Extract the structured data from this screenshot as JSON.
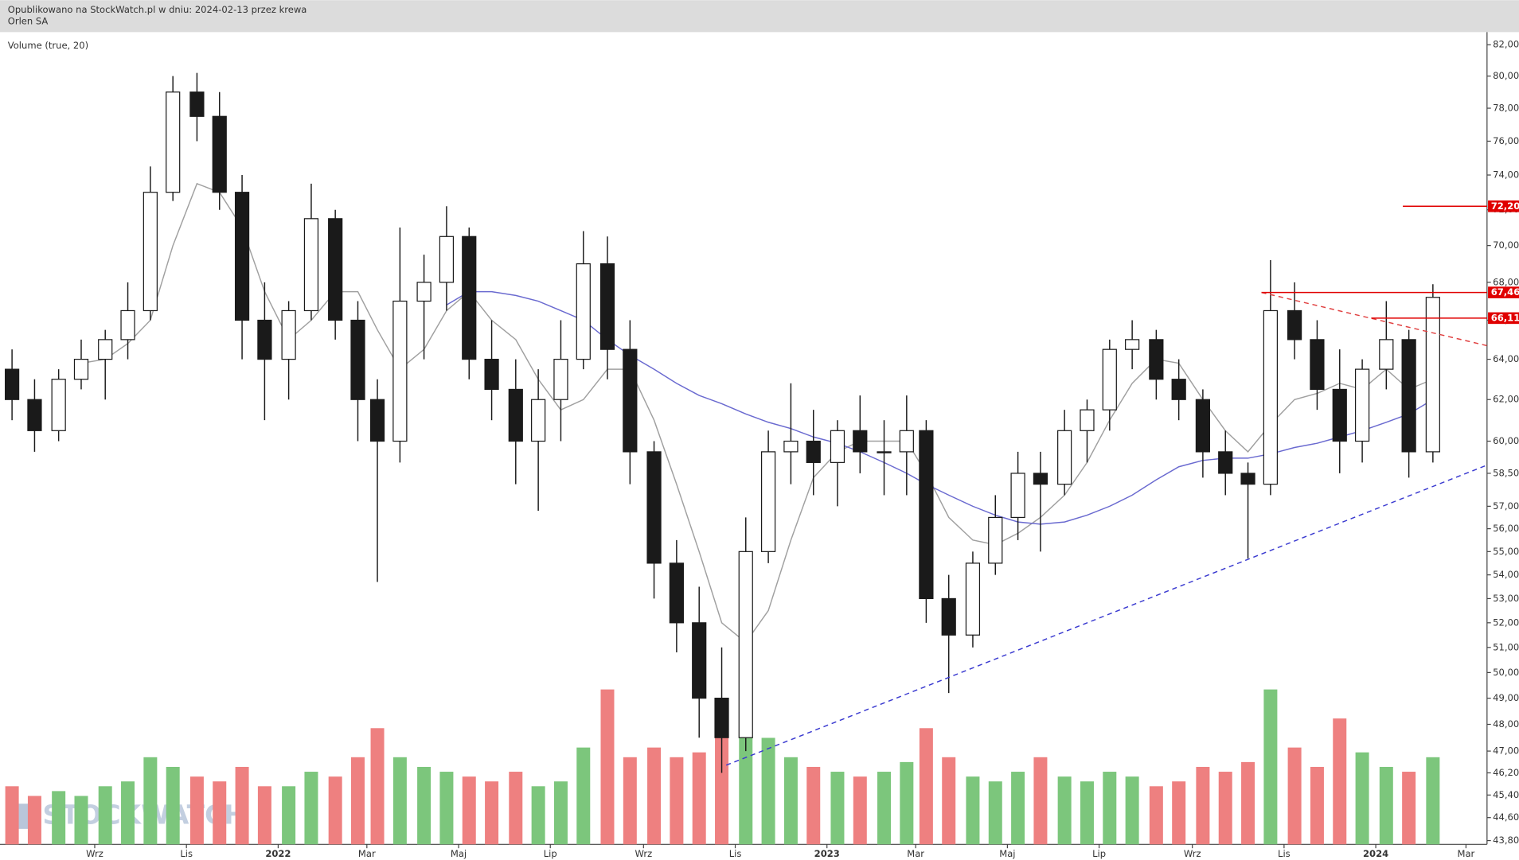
{
  "chart_data": {
    "type": "candlestick",
    "subtitle": "Opublikowano na StockWatch.pl w dniu: 2024-02-13 przez krewa",
    "title": "Orlen SA",
    "indicator_label": "Volume (true, 20)",
    "watermark": "STOCKWATCH",
    "log_scale": true,
    "x": [
      "2021-07-08",
      "2021-07-23",
      "2021-08-08",
      "2021-08-23",
      "2021-09-08",
      "2021-09-23",
      "2021-10-08",
      "2021-10-23",
      "2021-11-08",
      "2021-11-23",
      "2021-12-08",
      "2021-12-23",
      "2022-01-08",
      "2022-01-23",
      "2022-02-08",
      "2022-02-23",
      "2022-03-08",
      "2022-03-23",
      "2022-04-08",
      "2022-04-23",
      "2022-05-08",
      "2022-05-23",
      "2022-06-08",
      "2022-06-23",
      "2022-07-08",
      "2022-07-23",
      "2022-08-08",
      "2022-08-23",
      "2022-09-08",
      "2022-09-23",
      "2022-10-08",
      "2022-10-23",
      "2022-11-08",
      "2022-11-23",
      "2022-12-08",
      "2022-12-23",
      "2023-01-08",
      "2023-01-23",
      "2023-02-08",
      "2023-02-23",
      "2023-03-08",
      "2023-03-23",
      "2023-04-08",
      "2023-04-23",
      "2023-05-08",
      "2023-05-23",
      "2023-06-08",
      "2023-06-23",
      "2023-07-08",
      "2023-07-23",
      "2023-08-08",
      "2023-08-23",
      "2023-09-08",
      "2023-09-23",
      "2023-10-08",
      "2023-10-23",
      "2023-11-08",
      "2023-11-23",
      "2023-12-08",
      "2023-12-23",
      "2024-01-08",
      "2024-01-23",
      "2024-02-08"
    ],
    "open": [
      63.5,
      62,
      60.5,
      63,
      64,
      65,
      66.5,
      73,
      79,
      77.5,
      73,
      66,
      64,
      66.5,
      71.5,
      66,
      62,
      60,
      67,
      68,
      70.5,
      64,
      62.5,
      60,
      62,
      64,
      69,
      64.5,
      59.5,
      54.5,
      52,
      49,
      47.5,
      55,
      59.5,
      60,
      59,
      60.5,
      59.5,
      59.5,
      60.5,
      53,
      51.5,
      54.5,
      56.5,
      58.5,
      58,
      60.5,
      61.5,
      64.5,
      65,
      63,
      62,
      59.5,
      58.5,
      58,
      66.5,
      65,
      62.5,
      60,
      63.5,
      65,
      59.5
    ],
    "high": [
      64.5,
      63,
      63.5,
      65,
      65.5,
      68,
      74.5,
      80,
      80.2,
      79,
      74,
      68,
      67,
      73.5,
      72,
      67,
      63,
      71,
      69.5,
      72.2,
      71,
      66,
      64,
      63.5,
      66,
      70.8,
      70.5,
      66,
      60,
      55.5,
      53.5,
      51,
      56.5,
      60.5,
      62.8,
      61.5,
      61,
      62.2,
      61,
      62.2,
      61,
      54,
      55,
      57.5,
      59.5,
      59.5,
      61.5,
      62,
      65,
      66,
      65.5,
      64,
      62.5,
      60.5,
      59,
      69.2,
      68,
      66,
      64.5,
      64,
      67,
      65.5,
      67.9
    ],
    "low": [
      61,
      59.5,
      60,
      62.5,
      62,
      64,
      66,
      72.5,
      76,
      72,
      64,
      61,
      62,
      66,
      65,
      60,
      53.7,
      59,
      64,
      66.5,
      63,
      61,
      58,
      56.8,
      60,
      63.5,
      63,
      58,
      53,
      50.8,
      47.5,
      46.2,
      47,
      54.5,
      58,
      57.5,
      57,
      58.5,
      57.5,
      57.5,
      52,
      49.2,
      51,
      54,
      55.5,
      55,
      57.5,
      59,
      60.5,
      63.5,
      62,
      61,
      58.3,
      57.5,
      54.7,
      57.5,
      64,
      61.5,
      58.5,
      59,
      62.5,
      58.3,
      59
    ],
    "close": [
      62,
      60.5,
      63,
      64,
      65,
      66.5,
      73,
      79,
      77.5,
      73,
      66,
      64,
      66.5,
      71.5,
      66,
      62,
      60,
      67,
      68,
      70.5,
      64,
      62.5,
      60,
      62,
      64,
      69,
      64.5,
      59.5,
      54.5,
      52,
      49,
      47.5,
      55,
      59.5,
      60,
      59,
      60.5,
      59.5,
      59.5,
      60.5,
      53,
      51.5,
      54.5,
      56.5,
      58.5,
      58,
      60.5,
      61.5,
      64.5,
      65,
      63,
      62,
      59.5,
      58.5,
      58,
      66.5,
      65,
      62.5,
      60,
      63.5,
      65,
      59.5,
      67.2
    ],
    "volume": [
      1.2,
      1.0,
      1.1,
      1.0,
      1.2,
      1.3,
      1.8,
      1.6,
      1.4,
      1.3,
      1.6,
      1.2,
      1.2,
      1.5,
      1.4,
      1.8,
      2.4,
      1.8,
      1.6,
      1.5,
      1.4,
      1.3,
      1.5,
      1.2,
      1.3,
      2.0,
      3.2,
      1.8,
      2.0,
      1.8,
      1.9,
      2.3,
      3.0,
      2.2,
      1.8,
      1.6,
      1.5,
      1.4,
      1.5,
      1.7,
      2.4,
      1.8,
      1.4,
      1.3,
      1.5,
      1.8,
      1.4,
      1.3,
      1.5,
      1.4,
      1.2,
      1.3,
      1.6,
      1.5,
      1.7,
      3.2,
      2.0,
      1.6,
      2.6,
      1.9,
      1.6,
      1.5,
      1.8
    ],
    "candle_colors": {
      "up": "#ffffff",
      "down": "#1a1a1a",
      "wick": "#1a1a1a"
    },
    "volume_colors": {
      "up": "#7cc67c",
      "down": "#ee8080"
    },
    "moving_averages": [
      {
        "color": "#a0a0a0",
        "values": [
          null,
          null,
          null,
          63.8,
          64,
          64.8,
          66,
          70,
          73.5,
          73,
          71,
          67.5,
          65,
          66,
          67.5,
          67.5,
          65.5,
          63.5,
          64.5,
          66.5,
          67.5,
          66,
          65,
          63,
          61.5,
          62,
          63.5,
          63.5,
          61,
          58,
          55,
          52,
          51.2,
          52.5,
          55.5,
          58.3,
          59.5,
          60,
          60,
          60,
          58.5,
          56.5,
          55.5,
          55.3,
          55.8,
          56.5,
          57.5,
          59,
          61,
          62.8,
          64,
          63.8,
          62,
          60.5,
          59.5,
          60.8,
          62,
          62.3,
          62.8,
          62.5,
          63.5,
          62.5,
          63
        ]
      },
      {
        "color": "#6a6ad0",
        "values": [
          null,
          null,
          null,
          null,
          null,
          null,
          null,
          null,
          null,
          null,
          null,
          null,
          null,
          null,
          null,
          null,
          null,
          null,
          null,
          66.8,
          67.5,
          67.5,
          67.3,
          67,
          66.5,
          66,
          65,
          64.2,
          63.5,
          62.8,
          62.2,
          61.8,
          61.3,
          60.9,
          60.6,
          60.2,
          59.9,
          59.5,
          59,
          58.5,
          58,
          57.5,
          57,
          56.6,
          56.3,
          56.2,
          56.3,
          56.6,
          57,
          57.5,
          58.2,
          58.8,
          59.1,
          59.2,
          59.2,
          59.4,
          59.7,
          59.9,
          60.2,
          60.5,
          60.9,
          61.3,
          62
        ]
      }
    ],
    "levels": [
      {
        "value": 72.2,
        "label": "72,20",
        "from": "2024-01-19",
        "color": "#e00000"
      },
      {
        "value": 67.46,
        "label": "67,46",
        "from": "2023-10-17",
        "color": "#e00000"
      },
      {
        "value": 66.11,
        "label": "66,11",
        "from": "2023-12-29",
        "color": "#e00000"
      }
    ],
    "trendlines": [
      {
        "x": [
          "2022-10-26",
          "2024-03-15"
        ],
        "y": [
          46.48,
          58.88
        ],
        "color": "#3a3ad0"
      },
      {
        "x": [
          "2023-10-17",
          "2024-03-15"
        ],
        "y": [
          67.46,
          64.69
        ],
        "color": "#e04040"
      }
    ],
    "xlim": [
      "2021-06-30",
      "2024-03-15"
    ],
    "xticks": [
      {
        "value": "2021-09-01",
        "label": "Wrz"
      },
      {
        "value": "2021-11-01",
        "label": "Lis"
      },
      {
        "value": "2022-01-01",
        "label": "2022"
      },
      {
        "value": "2022-03-01",
        "label": "Mar"
      },
      {
        "value": "2022-05-01",
        "label": "Maj"
      },
      {
        "value": "2022-07-01",
        "label": "Lip"
      },
      {
        "value": "2022-09-01",
        "label": "Wrz"
      },
      {
        "value": "2022-11-01",
        "label": "Lis"
      },
      {
        "value": "2023-01-01",
        "label": "2023"
      },
      {
        "value": "2023-03-01",
        "label": "Mar"
      },
      {
        "value": "2023-05-01",
        "label": "Maj"
      },
      {
        "value": "2023-07-01",
        "label": "Lip"
      },
      {
        "value": "2023-09-01",
        "label": "Wrz"
      },
      {
        "value": "2023-11-01",
        "label": "Lis"
      },
      {
        "value": "2024-01-01",
        "label": "2024"
      },
      {
        "value": "2024-03-01",
        "label": "Mar"
      }
    ],
    "ylim": [
      43.67,
      82.82
    ],
    "yticks": [
      {
        "value": 82,
        "label": "82,00"
      },
      {
        "value": 80,
        "label": "80,00"
      },
      {
        "value": 78,
        "label": "78,00"
      },
      {
        "value": 76,
        "label": "76,00"
      },
      {
        "value": 74,
        "label": "74,00"
      },
      {
        "value": 72,
        "label": "72,00"
      },
      {
        "value": 70,
        "label": "70,00"
      },
      {
        "value": 68,
        "label": "68,00"
      },
      {
        "value": 66,
        "label": "66,00"
      },
      {
        "value": 64,
        "label": "64,00"
      },
      {
        "value": 62,
        "label": "62,00"
      },
      {
        "value": 60,
        "label": "60,00"
      },
      {
        "value": 58.5,
        "label": "58,50"
      },
      {
        "value": 57,
        "label": "57,00"
      },
      {
        "value": 56,
        "label": "56,00"
      },
      {
        "value": 55,
        "label": "55,00"
      },
      {
        "value": 54,
        "label": "54,00"
      },
      {
        "value": 53,
        "label": "53,00"
      },
      {
        "value": 52,
        "label": "52,00"
      },
      {
        "value": 51,
        "label": "51,00"
      },
      {
        "value": 50,
        "label": "50,00"
      },
      {
        "value": 49,
        "label": "49,00"
      },
      {
        "value": 48,
        "label": "48,00"
      },
      {
        "value": 47,
        "label": "47,00"
      },
      {
        "value": 46.2,
        "label": "46,20"
      },
      {
        "value": 45.4,
        "label": "45,40"
      },
      {
        "value": 44.6,
        "label": "44,60"
      },
      {
        "value": 43.8,
        "label": "43,80"
      }
    ]
  }
}
